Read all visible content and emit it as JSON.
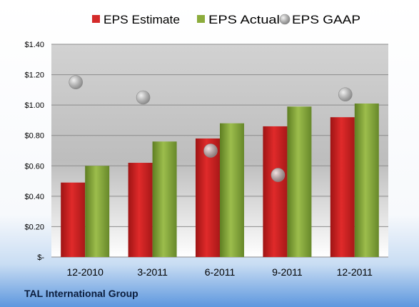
{
  "chart_data": {
    "type": "bar",
    "company": "TAL International Group",
    "categories": [
      "12-2010",
      "3-2011",
      "6-2011",
      "9-2011",
      "12-2011"
    ],
    "series": [
      {
        "name": "EPS Estimate",
        "type": "bar",
        "color": "#d42a2a",
        "values": [
          0.49,
          0.62,
          0.78,
          0.86,
          0.92
        ]
      },
      {
        "name": "EPS Actual",
        "type": "bar",
        "color": "#8cac3c",
        "values": [
          0.6,
          0.76,
          0.88,
          0.99,
          1.01
        ]
      },
      {
        "name": "EPS GAAP",
        "type": "scatter",
        "color": "#a8a8a8",
        "values": [
          1.15,
          1.05,
          0.7,
          0.54,
          1.07
        ]
      }
    ],
    "ylim": [
      0,
      1.4
    ],
    "yticks": [
      0,
      0.2,
      0.4,
      0.6,
      0.8,
      1.0,
      1.2,
      1.4
    ],
    "ytick_labels": [
      "$-",
      "$0.20",
      "$0.40",
      "$0.60",
      "$0.80",
      "$1.00",
      "$1.20",
      "$1.40"
    ],
    "grid": true,
    "legend_position": "top"
  }
}
